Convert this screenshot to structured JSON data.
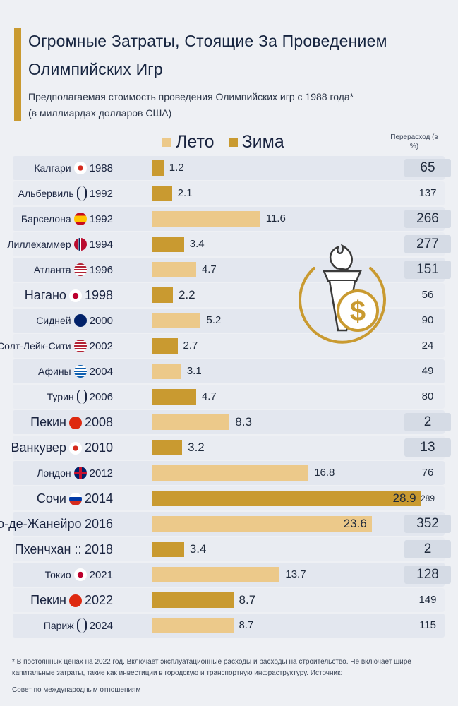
{
  "title": "Огромные Затраты, Стоящие За Проведением Олимпийских Игр",
  "subtitle_line1": "Предполагаемая стоимость проведения Олимпийских игр с 1988 года*",
  "subtitle_line2": "(в миллиардах долларов США)",
  "legend": {
    "summer": "Лето",
    "winter": "Зима"
  },
  "overrun_header": "Перерасход (в %)",
  "colors": {
    "summer": "#ecc98a",
    "winter": "#c99a30",
    "accent": "#c99a30"
  },
  "chart_data": {
    "type": "bar",
    "orientation": "horizontal",
    "title": "Огромные Затраты, Стоящие За Проведением Олимпийских Игр",
    "subtitle": "Предполагаемая стоимость проведения Олимпийских игр с 1988 года* (в миллиардах долларов США)",
    "xlim": [
      0,
      30
    ],
    "series_names": [
      "Лето",
      "Зима"
    ],
    "rows": [
      {
        "city": "Калгари",
        "flag": "ca",
        "year": "1988",
        "season": "winter",
        "cost": 1.2,
        "cost_label": "1.2",
        "overrun": "65"
      },
      {
        "city": "Альбервиль",
        "flag": "none",
        "year": "1992",
        "season": "winter",
        "cost": 2.1,
        "cost_label": "2.1",
        "overrun": "137"
      },
      {
        "city": "Барселона",
        "flag": "es",
        "year": "1992",
        "season": "summer",
        "cost": 11.6,
        "cost_label": "11.6",
        "overrun": "266"
      },
      {
        "city": "Лиллехаммер",
        "flag": "no",
        "year": "1994",
        "season": "winter",
        "cost": 3.4,
        "cost_label": "3.4",
        "overrun": "277"
      },
      {
        "city": "Атланта",
        "flag": "us",
        "year": "1996",
        "season": "summer",
        "cost": 4.7,
        "cost_label": "4.7",
        "overrun": "151"
      },
      {
        "city": "Нагано",
        "flag": "jp",
        "year": "1998",
        "season": "winter",
        "cost": 2.2,
        "cost_label": "2.2",
        "overrun": "56"
      },
      {
        "city": "Сидней",
        "flag": "au",
        "year": "2000",
        "season": "summer",
        "cost": 5.2,
        "cost_label": "5.2",
        "overrun": "90"
      },
      {
        "city": "Солт-Лейк-Сити",
        "flag": "us",
        "year": "2002",
        "season": "winter",
        "cost": 2.7,
        "cost_label": "2.7",
        "overrun": "24"
      },
      {
        "city": "Афины",
        "flag": "gr",
        "year": "2004",
        "season": "summer",
        "cost": 3.1,
        "cost_label": "3.1",
        "overrun": "49"
      },
      {
        "city": "Турин",
        "flag": "none",
        "year": "2006",
        "season": "winter",
        "cost": 4.7,
        "cost_label": "4.7",
        "overrun": "80"
      },
      {
        "city": "Пекин",
        "flag": "cn",
        "year": "2008",
        "season": "summer",
        "cost": 8.3,
        "cost_label": "8.3",
        "overrun": "2"
      },
      {
        "city": "Ванкувер",
        "flag": "ca",
        "year": "2010",
        "season": "winter",
        "cost": 3.2,
        "cost_label": "3.2",
        "overrun": "13"
      },
      {
        "city": "Лондон",
        "flag": "gb",
        "year": "2012",
        "season": "summer",
        "cost": 16.8,
        "cost_label": "16.8",
        "overrun": "76"
      },
      {
        "city": "Сочи",
        "flag": "ru",
        "year": "2014",
        "season": "winter",
        "cost": 28.9,
        "cost_label": "28.9",
        "overrun": "289"
      },
      {
        "city": "Рио-де-Жанейро",
        "flag": "none-inline",
        "year": "2016",
        "season": "summer",
        "cost": 23.6,
        "cost_label": "23.6",
        "overrun": "352"
      },
      {
        "city": "Пхенчхан ::",
        "flag": "none-inline",
        "year": "2018",
        "season": "winter",
        "cost": 3.4,
        "cost_label": "3.4",
        "overrun": "2"
      },
      {
        "city": "Токио",
        "flag": "jp",
        "year": "2021",
        "season": "summer",
        "cost": 13.7,
        "cost_label": "13.7",
        "overrun": "128"
      },
      {
        "city": "Пекин",
        "flag": "cn",
        "year": "2022",
        "season": "winter",
        "cost": 8.7,
        "cost_label": "8.7",
        "overrun": "149"
      },
      {
        "city": "Париж",
        "flag": "none",
        "year": "2024",
        "season": "summer",
        "cost": 8.7,
        "cost_label": "8.7",
        "overrun": "115"
      }
    ]
  },
  "footnote": "* В постоянных ценах на 2022 год. Включает эксплуатационные расходы и расходы на строительство. Не включает шире капитальные затраты, такие как инвестиции в городскую и транспортную инфраструктуру. Источник:",
  "source": "Совет по международным отношениям"
}
